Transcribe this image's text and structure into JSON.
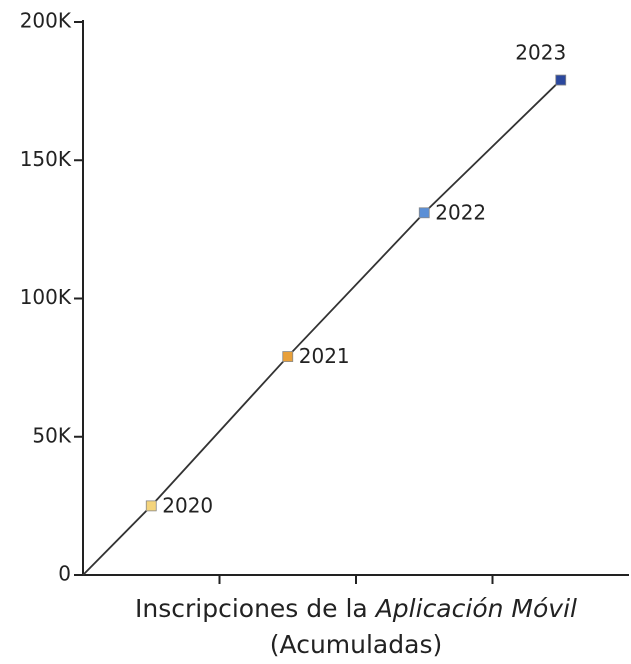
{
  "chart_data": {
    "type": "line",
    "x": [
      0.5,
      1.5,
      2.5,
      3.5
    ],
    "values": [
      25000,
      79000,
      131000,
      179000
    ],
    "point_labels": [
      "2020",
      "2021",
      "2022",
      "2023"
    ],
    "point_colors": [
      "#f4d47c",
      "#e8a03a",
      "#5b8fd6",
      "#2b489e"
    ],
    "line_color": "#333333",
    "xlim": [
      0,
      4
    ],
    "xticks": [
      1,
      2,
      3
    ],
    "ylim": [
      0,
      200000
    ],
    "yticks": [
      0,
      {
        "value": 50000,
        "label": "50K"
      },
      {
        "value": 100000,
        "label": "100K"
      },
      {
        "value": 150000,
        "label": "150K"
      },
      {
        "value": 200000,
        "label": "200K"
      }
    ],
    "xlabel": [
      "Inscripciones de la",
      "Aplicación Móvil",
      "(Acumuladas)"
    ]
  }
}
